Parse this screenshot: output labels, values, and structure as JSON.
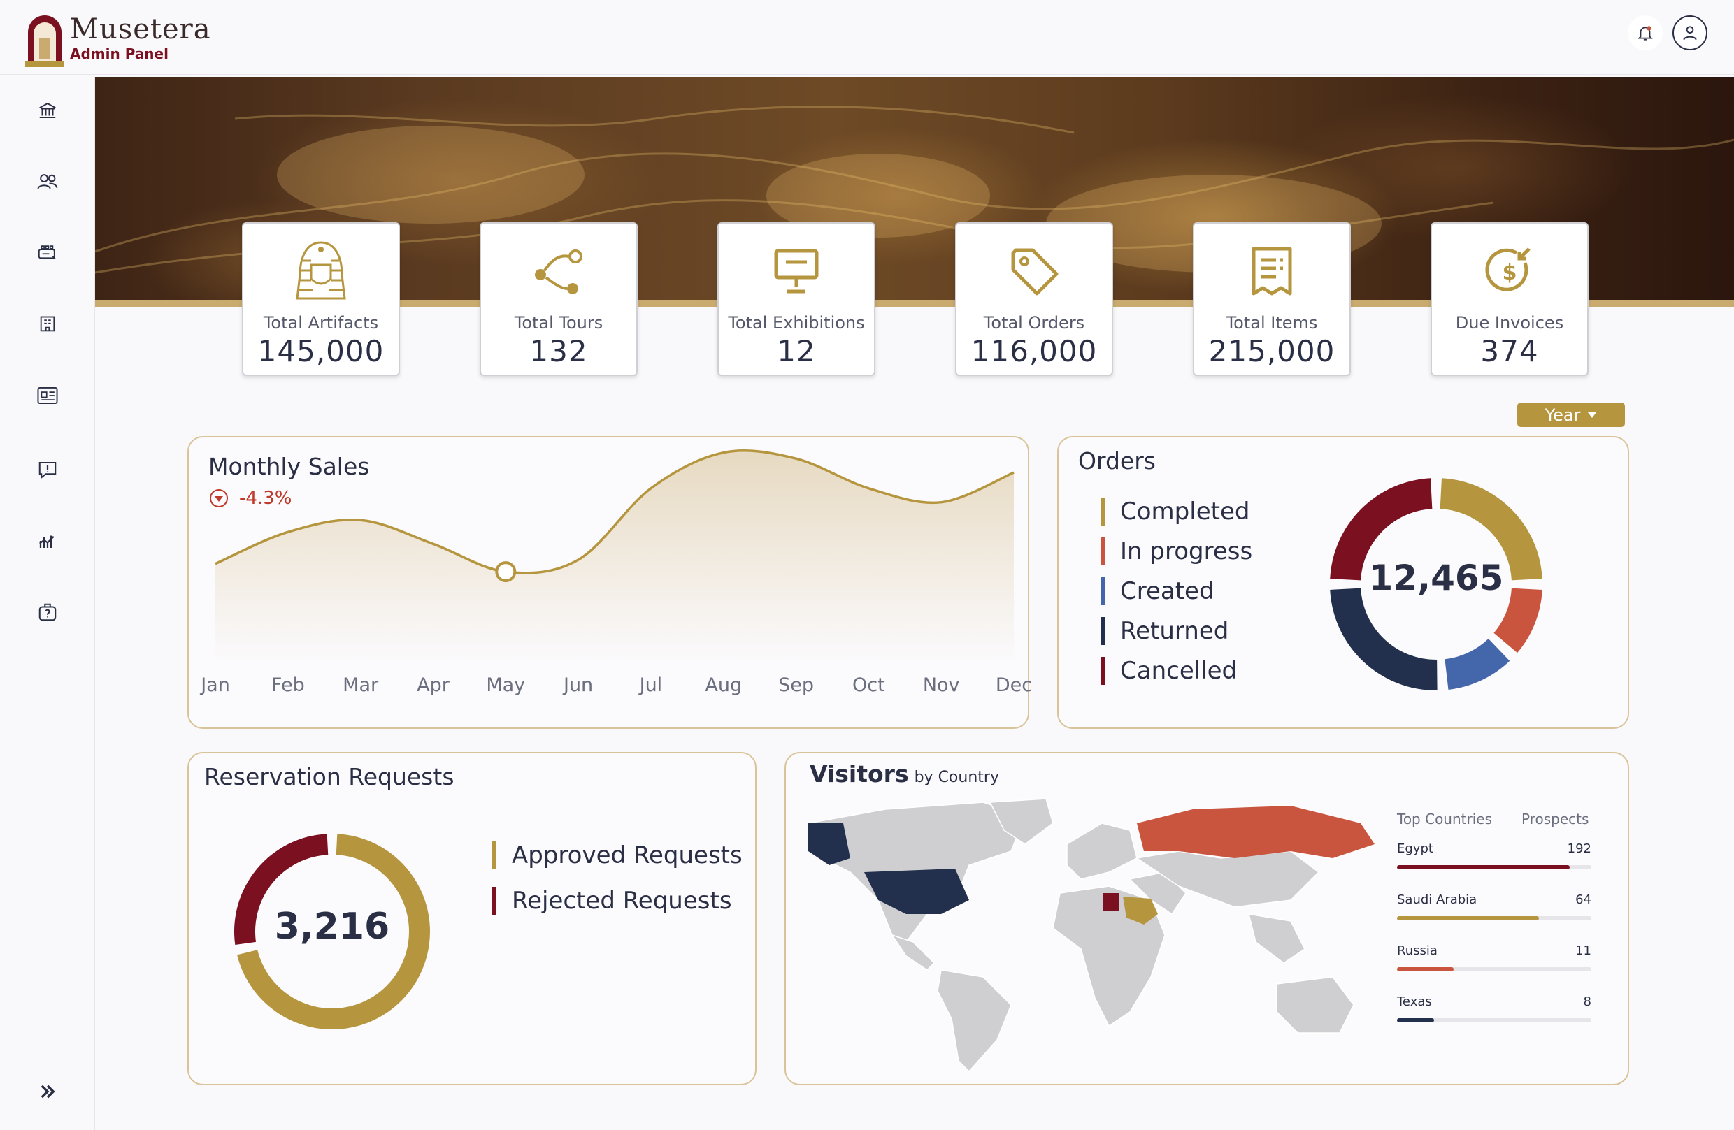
{
  "brand": {
    "name": "Musetera",
    "subtitle": "Admin Panel"
  },
  "icons": {
    "notification": "bell-icon",
    "profile": "user-icon",
    "expand": "chevrons-right-icon"
  },
  "sidebar": {
    "items": [
      {
        "name": "museum-icon"
      },
      {
        "name": "users-icon"
      },
      {
        "name": "tickets-icon"
      },
      {
        "name": "building-icon"
      },
      {
        "name": "news-icon"
      },
      {
        "name": "feedback-icon"
      },
      {
        "name": "analytics-icon"
      },
      {
        "name": "help-icon"
      }
    ]
  },
  "stats": [
    {
      "label": "Total Artifacts",
      "value": "145,000",
      "icon": "pharaoh-icon"
    },
    {
      "label": "Total Tours",
      "value": "132",
      "icon": "route-icon"
    },
    {
      "label": "Total Exhibitions",
      "value": "12",
      "icon": "easel-icon"
    },
    {
      "label": "Total Orders",
      "value": "116,000",
      "icon": "tag-icon"
    },
    {
      "label": "Total Items",
      "value": "215,000",
      "icon": "receipt-icon"
    },
    {
      "label": "Due Invoices",
      "value": "374",
      "icon": "dollar-coin-icon"
    }
  ],
  "filter": {
    "label": "Year"
  },
  "monthly_sales": {
    "title": "Monthly Sales",
    "change": "-4.3%"
  },
  "orders": {
    "title": "Orders",
    "total": "12,465",
    "legend": [
      {
        "label": "Completed",
        "color": "#b5963f"
      },
      {
        "label": "In progress",
        "color": "#c9553f"
      },
      {
        "label": "Created",
        "color": "#4466aa"
      },
      {
        "label": "Returned",
        "color": "#22304e"
      },
      {
        "label": "Cancelled",
        "color": "#7a1020"
      }
    ]
  },
  "reservations": {
    "title": "Reservation Requests",
    "total": "3,216",
    "legend": [
      {
        "label": "Approved Requests",
        "color": "#b5963f"
      },
      {
        "label": "Rejected Requests",
        "color": "#7a1020"
      }
    ]
  },
  "visitors": {
    "title": "Visitors",
    "subtitle": "by Country",
    "col_country": "Top Countries",
    "col_prospects": "Prospects",
    "countries": [
      {
        "name": "Egypt",
        "value": "192",
        "fraction": 0.89,
        "color": "#7a1020"
      },
      {
        "name": "Saudi Arabia",
        "value": "64",
        "fraction": 0.73,
        "color": "#b5963f"
      },
      {
        "name": "Russia",
        "value": "11",
        "fraction": 0.29,
        "color": "#c9553f"
      },
      {
        "name": "Texas",
        "value": "8",
        "fraction": 0.19,
        "color": "#22304e"
      }
    ]
  },
  "chart_data": [
    {
      "type": "area",
      "title": "Monthly Sales",
      "categories": [
        "Jan",
        "Feb",
        "Mar",
        "Apr",
        "May",
        "Jun",
        "Jul",
        "Aug",
        "Sep",
        "Oct",
        "Nov",
        "Dec"
      ],
      "values": [
        42,
        58,
        64,
        52,
        38,
        44,
        80,
        98,
        95,
        80,
        73,
        88
      ],
      "ylim": [
        0,
        100
      ],
      "grid": false,
      "highlight_index": 4,
      "color": "#b5963f"
    },
    {
      "type": "pie",
      "title": "Orders",
      "donut": true,
      "categories": [
        "Completed",
        "In progress",
        "Created",
        "Returned",
        "Cancelled"
      ],
      "values": [
        25,
        12,
        12,
        26,
        25
      ],
      "colors": [
        "#b5963f",
        "#c9553f",
        "#4466aa",
        "#22304e",
        "#7a1020"
      ]
    },
    {
      "type": "pie",
      "title": "Reservation Requests",
      "donut": true,
      "categories": [
        "Approved Requests",
        "Rejected Requests"
      ],
      "values": [
        72,
        28
      ],
      "colors": [
        "#b5963f",
        "#7a1020"
      ]
    }
  ]
}
